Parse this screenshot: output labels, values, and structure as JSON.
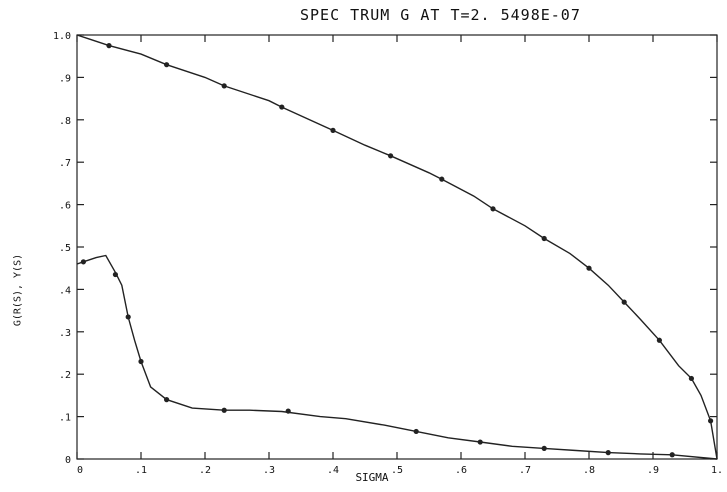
{
  "chart_data": {
    "type": "line",
    "title": "SPEC TRUM  G  AT  T=2. 5498E-07",
    "xlabel": "SIGMA",
    "ylabel": "G(R(S), Y(S)",
    "xlim": [
      0,
      1
    ],
    "ylim": [
      0,
      1
    ],
    "x_ticks": [
      {
        "v": 0,
        "label": "0"
      },
      {
        "v": 0.1,
        "label": ".1"
      },
      {
        "v": 0.2,
        "label": ".2"
      },
      {
        "v": 0.3,
        "label": ".3"
      },
      {
        "v": 0.4,
        "label": ".4"
      },
      {
        "v": 0.5,
        "label": ".5"
      },
      {
        "v": 0.6,
        "label": ".6"
      },
      {
        "v": 0.7,
        "label": ".7"
      },
      {
        "v": 0.8,
        "label": ".8"
      },
      {
        "v": 0.9,
        "label": ".9"
      },
      {
        "v": 1.0,
        "label": "1."
      }
    ],
    "y_ticks": [
      {
        "v": 0,
        "label": "0"
      },
      {
        "v": 0.1,
        "label": ".1"
      },
      {
        "v": 0.2,
        "label": ".2"
      },
      {
        "v": 0.3,
        "label": ".3"
      },
      {
        "v": 0.4,
        "label": ".4"
      },
      {
        "v": 0.5,
        "label": ".5"
      },
      {
        "v": 0.6,
        "label": ".6"
      },
      {
        "v": 0.7,
        "label": ".7"
      },
      {
        "v": 0.8,
        "label": ".8"
      },
      {
        "v": 0.9,
        "label": ".9"
      },
      {
        "v": 1.0,
        "label": "1.0"
      }
    ],
    "grid": false,
    "series": [
      {
        "line": [
          [
            0.0,
            1.0
          ],
          [
            0.02,
            0.99
          ],
          [
            0.05,
            0.975
          ],
          [
            0.1,
            0.955
          ],
          [
            0.14,
            0.93
          ],
          [
            0.2,
            0.9
          ],
          [
            0.23,
            0.88
          ],
          [
            0.3,
            0.845
          ],
          [
            0.32,
            0.83
          ],
          [
            0.4,
            0.775
          ],
          [
            0.45,
            0.74
          ],
          [
            0.49,
            0.715
          ],
          [
            0.55,
            0.675
          ],
          [
            0.57,
            0.66
          ],
          [
            0.62,
            0.62
          ],
          [
            0.65,
            0.59
          ],
          [
            0.7,
            0.55
          ],
          [
            0.73,
            0.52
          ],
          [
            0.77,
            0.485
          ],
          [
            0.8,
            0.45
          ],
          [
            0.83,
            0.41
          ],
          [
            0.855,
            0.37
          ],
          [
            0.88,
            0.33
          ],
          [
            0.91,
            0.28
          ],
          [
            0.94,
            0.22
          ],
          [
            0.96,
            0.19
          ],
          [
            0.975,
            0.15
          ],
          [
            0.99,
            0.09
          ],
          [
            1.0,
            0.0
          ]
        ],
        "markers": [
          [
            0.05,
            0.975
          ],
          [
            0.14,
            0.93
          ],
          [
            0.23,
            0.88
          ],
          [
            0.32,
            0.83
          ],
          [
            0.4,
            0.775
          ],
          [
            0.49,
            0.715
          ],
          [
            0.57,
            0.66
          ],
          [
            0.65,
            0.59
          ],
          [
            0.73,
            0.52
          ],
          [
            0.8,
            0.45
          ],
          [
            0.855,
            0.37
          ],
          [
            0.91,
            0.28
          ],
          [
            0.96,
            0.19
          ],
          [
            0.99,
            0.09
          ]
        ],
        "marker": "circle"
      },
      {
        "line": [
          [
            0.0,
            0.46
          ],
          [
            0.01,
            0.465
          ],
          [
            0.03,
            0.475
          ],
          [
            0.045,
            0.48
          ],
          [
            0.06,
            0.44
          ],
          [
            0.07,
            0.41
          ],
          [
            0.08,
            0.335
          ],
          [
            0.09,
            0.28
          ],
          [
            0.1,
            0.23
          ],
          [
            0.115,
            0.17
          ],
          [
            0.14,
            0.14
          ],
          [
            0.18,
            0.12
          ],
          [
            0.23,
            0.115
          ],
          [
            0.27,
            0.115
          ],
          [
            0.32,
            0.112
          ],
          [
            0.38,
            0.1
          ],
          [
            0.42,
            0.095
          ],
          [
            0.48,
            0.08
          ],
          [
            0.53,
            0.065
          ],
          [
            0.58,
            0.05
          ],
          [
            0.63,
            0.04
          ],
          [
            0.68,
            0.03
          ],
          [
            0.73,
            0.025
          ],
          [
            0.78,
            0.02
          ],
          [
            0.83,
            0.015
          ],
          [
            0.88,
            0.012
          ],
          [
            0.93,
            0.01
          ],
          [
            1.0,
            0.0
          ]
        ],
        "markers": [
          [
            0.01,
            0.465
          ],
          [
            0.06,
            0.435
          ],
          [
            0.08,
            0.335
          ],
          [
            0.1,
            0.23
          ],
          [
            0.14,
            0.14
          ],
          [
            0.23,
            0.115
          ],
          [
            0.33,
            0.113
          ],
          [
            0.53,
            0.065
          ],
          [
            0.63,
            0.04
          ],
          [
            0.73,
            0.025
          ],
          [
            0.83,
            0.015
          ],
          [
            0.93,
            0.01
          ]
        ],
        "marker": "circle"
      }
    ]
  }
}
